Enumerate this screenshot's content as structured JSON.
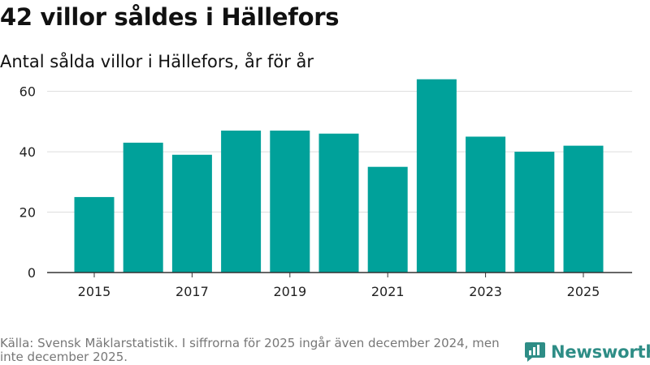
{
  "title": "42 villor såldes i Hällefors",
  "subtitle": "Antal sålda villor i Hällefors, år för år",
  "footer": {
    "source": "Källa: Svensk Mäklarstatistik. I siffrorna för 2025 ingår även december 2024, men inte december 2025."
  },
  "brand": {
    "name": "Newsworthy"
  },
  "colors": {
    "bar": "#00a19a",
    "grid": "#dddddd",
    "axis": "#333333",
    "brand": "#2e8d86"
  },
  "chart_data": {
    "type": "bar",
    "title": "42 villor såldes i Hällefors",
    "subtitle": "Antal sålda villor i Hällefors, år för år",
    "xlabel": "",
    "ylabel": "",
    "categories": [
      2015,
      2016,
      2017,
      2018,
      2019,
      2020,
      2021,
      2022,
      2023,
      2024,
      2025
    ],
    "values": [
      25,
      43,
      39,
      47,
      47,
      46,
      35,
      64,
      45,
      40,
      42
    ],
    "ylim": [
      0,
      65
    ],
    "yticks": [
      0,
      20,
      40,
      60
    ],
    "xtick_labels": [
      "2015",
      "2017",
      "2019",
      "2021",
      "2023",
      "2025"
    ],
    "grid": true
  }
}
